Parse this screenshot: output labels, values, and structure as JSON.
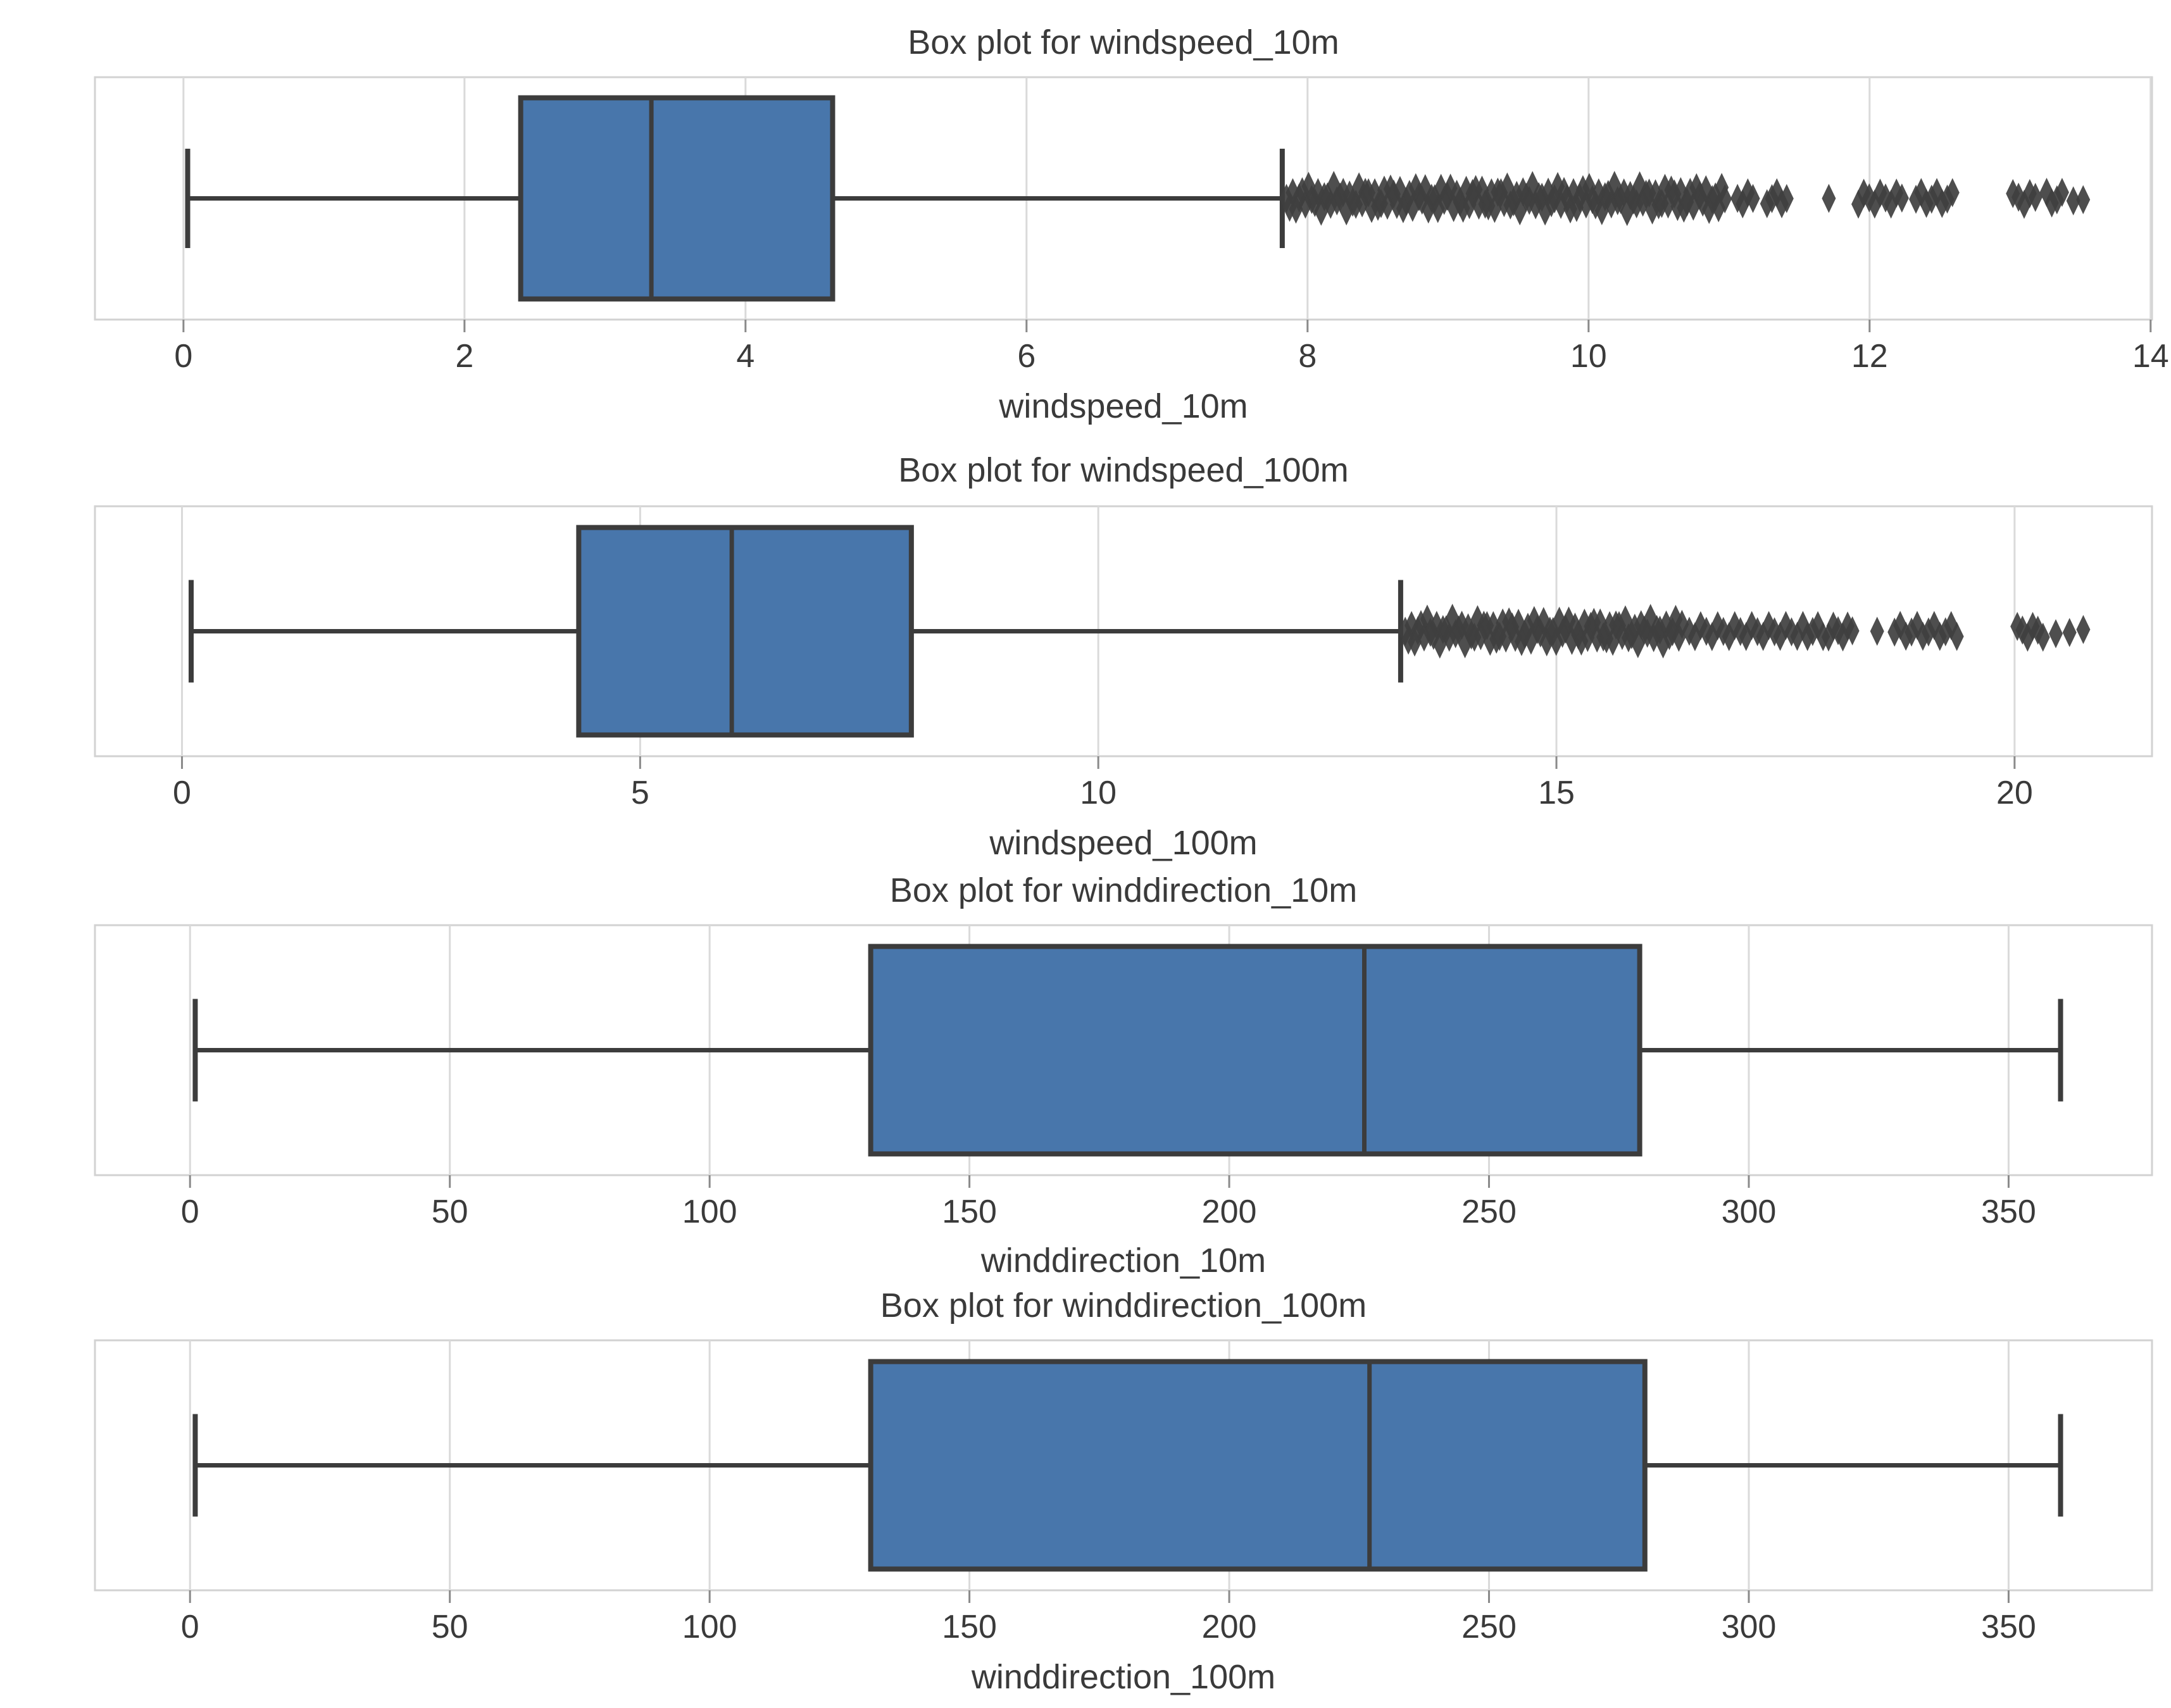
{
  "figure": {
    "background": "#ffffff",
    "box_fill": "#4876AB",
    "box_edge": "#3c3c3c",
    "whisker_color": "#3c3c3c",
    "flier_color": "#3f3f3f",
    "grid_color": "#dadada",
    "spine_color": "#d2d2d2",
    "tick_mark_color": "#8a8a8a",
    "text_color": "#3a3a3a"
  },
  "chart_data": [
    {
      "type": "box",
      "orientation": "horizontal",
      "title": "Box plot for windspeed_10m",
      "xlabel": "windspeed_10m",
      "xlim": [
        -0.63,
        14.01
      ],
      "ticks": [
        0,
        2,
        4,
        6,
        8,
        10,
        12,
        14
      ],
      "grid": true,
      "box": {
        "whislo": 0.03,
        "q1": 2.4,
        "med": 3.33,
        "q3": 4.62,
        "whishi": 7.82
      },
      "outliers": {
        "dense": [
          [
            7.85,
            10.97
          ]
        ],
        "clusters": [
          [
            11.06,
            11.17
          ],
          [
            11.27,
            11.41
          ],
          [
            11.92,
            12.23
          ],
          [
            12.33,
            12.59
          ],
          [
            13.02,
            13.18
          ],
          [
            13.26,
            13.37
          ]
        ],
        "points": [
          11.71,
          13.45,
          13.52
        ]
      }
    },
    {
      "type": "box",
      "orientation": "horizontal",
      "title": "Box plot for windspeed_100m",
      "xlabel": "windspeed_100m",
      "xlim": [
        -0.95,
        21.5
      ],
      "ticks": [
        0,
        5,
        10,
        15,
        20
      ],
      "grid": true,
      "box": {
        "whislo": 0.1,
        "q1": 4.33,
        "med": 6.0,
        "q3": 7.96,
        "whishi": 13.3
      },
      "outliers": {
        "dense": [
          [
            13.35,
            16.37
          ]
        ],
        "clusters": [
          [
            16.45,
            17.69
          ],
          [
            17.74,
            17.91
          ],
          [
            17.97,
            18.23
          ],
          [
            18.69,
            19.37
          ],
          [
            20.03,
            20.31
          ]
        ],
        "points": [
          18.5,
          20.45,
          20.6,
          20.75
        ]
      }
    },
    {
      "type": "box",
      "orientation": "horizontal",
      "title": "Box plot for winddirection_10m",
      "xlabel": "winddirection_10m",
      "xlim": [
        -18.3,
        377.6
      ],
      "ticks": [
        0,
        50,
        100,
        150,
        200,
        250,
        300,
        350
      ],
      "grid": true,
      "box": {
        "whislo": 1,
        "q1": 131,
        "med": 226,
        "q3": 279,
        "whishi": 360
      },
      "outliers": {
        "dense": [],
        "clusters": [],
        "points": []
      }
    },
    {
      "type": "box",
      "orientation": "horizontal",
      "title": "Box plot for winddirection_100m",
      "xlabel": "winddirection_100m",
      "xlim": [
        -18.3,
        377.6
      ],
      "ticks": [
        0,
        50,
        100,
        150,
        200,
        250,
        300,
        350
      ],
      "grid": true,
      "box": {
        "whislo": 1,
        "q1": 131,
        "med": 227,
        "q3": 280,
        "whishi": 360
      },
      "outliers": {
        "dense": [],
        "clusters": [],
        "points": []
      }
    }
  ]
}
